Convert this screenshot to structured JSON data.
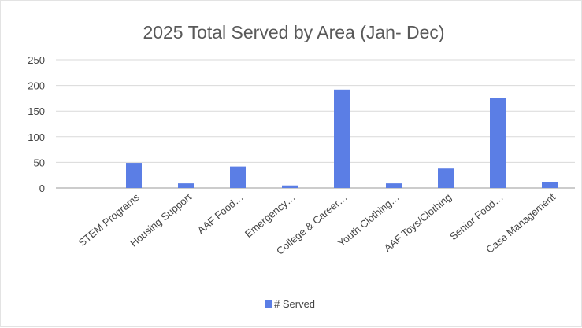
{
  "chart_data": {
    "type": "bar",
    "title": "2025 Total Served by Area (Jan- Dec)",
    "categories": [
      "STEM Programs",
      "Housing Support",
      "AAF Food…",
      "Emergency…",
      "College & Career…",
      "Youth Clothing…",
      "AAF Toys/Clothing",
      "Senior Food…",
      "Case Management"
    ],
    "series": [
      {
        "name": "# Served",
        "color": "#5b7ee5",
        "values": [
          49,
          9,
          42,
          5,
          192,
          9,
          38,
          175,
          11
        ]
      }
    ],
    "ylim": [
      0,
      250
    ],
    "yticks": [
      "0",
      "50",
      "100",
      "150",
      "200",
      "250"
    ],
    "grid": true,
    "legend_position": "bottom"
  }
}
